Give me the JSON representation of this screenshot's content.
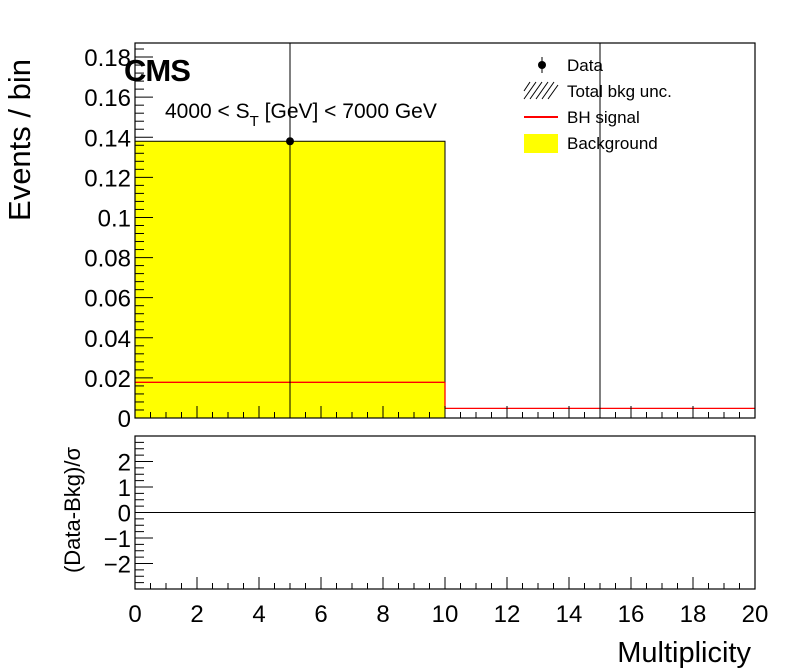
{
  "chart_data": [
    {
      "type": "bar",
      "panel": "main",
      "experiment_label": "CMS",
      "selection_text": "4000 < S_T [GeV] < 7000 GeV",
      "selection_parts": {
        "pre": "4000 < S",
        "sub": "T",
        "post": " [GeV] < 7000 GeV"
      },
      "ylabel": "Events / bin",
      "xlabel": "",
      "xlim": [
        0,
        20
      ],
      "ylim": [
        0,
        0.187
      ],
      "ytick_values": [
        0,
        0.02,
        0.04,
        0.06,
        0.08,
        0.1,
        0.12,
        0.14,
        0.16,
        0.18
      ],
      "ytick_labels": [
        "0",
        "0.02",
        "0.04",
        "0.06",
        "0.08",
        "0.1",
        "0.12",
        "0.14",
        "0.16",
        "0.18"
      ],
      "bin_edges": [
        0,
        10,
        20
      ],
      "series": [
        {
          "name": "Background",
          "kind": "hist",
          "color": "#ffff00",
          "values": [
            0.138,
            0.0
          ]
        },
        {
          "name": "BH signal",
          "kind": "step",
          "color": "#ff0000",
          "values": [
            0.0178,
            0.0048
          ]
        },
        {
          "name": "Data",
          "kind": "points",
          "color": "#000000",
          "x": [
            5
          ],
          "y": [
            0.138
          ],
          "yerr_up": [
            0.187
          ],
          "yerr_down": [
            0.138
          ]
        },
        {
          "name": "Total bkg unc.",
          "kind": "band",
          "color": "#000000",
          "values": [
            0.0,
            0.0
          ]
        }
      ],
      "extra_data_error_bar": {
        "x": 15,
        "y": 0.0,
        "up": 0.187
      },
      "legend_position": "top-right",
      "legend": [
        {
          "label": "Data",
          "marker": "point"
        },
        {
          "label": "Total bkg unc.",
          "marker": "hatch"
        },
        {
          "label": "BH signal",
          "marker": "line"
        },
        {
          "label": "Background",
          "marker": "fill"
        }
      ]
    },
    {
      "type": "scatter",
      "panel": "ratio",
      "ylabel": "(Data-Bkg)/σ",
      "xlabel": "Multiplicity",
      "xlim": [
        0,
        20
      ],
      "ylim": [
        -3,
        3
      ],
      "xtick_values": [
        0,
        2,
        4,
        6,
        8,
        10,
        12,
        14,
        16,
        18,
        20
      ],
      "xtick_labels": [
        "0",
        "2",
        "4",
        "6",
        "8",
        "10",
        "12",
        "14",
        "16",
        "18",
        "20"
      ],
      "ytick_values": [
        -2,
        -1,
        0,
        1,
        2
      ],
      "ytick_labels": [
        "−2",
        "−1",
        "0",
        "1",
        "2"
      ],
      "reference_line": 0,
      "points": []
    }
  ],
  "colors": {
    "axis": "#000000",
    "background_fill": "#ffff00",
    "signal_line": "#ff0000"
  }
}
